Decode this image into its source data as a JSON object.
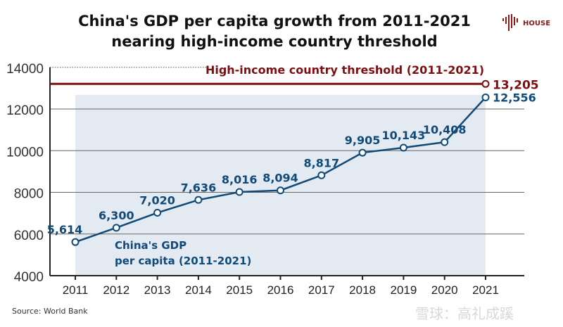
{
  "title_line1": "China's GDP per capita growth from 2011-2021",
  "title_line2": "nearing high-income country threshold",
  "logo_text": "HOUSE",
  "source": "Source: World Bank",
  "watermark": "雪球：高礼成蹊",
  "colors": {
    "series": "#114a78",
    "threshold": "#7d0f12",
    "shade": "#e3eaf2"
  },
  "chart_data": {
    "type": "line",
    "title": "China's GDP per capita growth from 2011-2021 nearing high-income country threshold",
    "x": [
      "2011",
      "2012",
      "2013",
      "2014",
      "2015",
      "2016",
      "2017",
      "2018",
      "2019",
      "2020",
      "2021"
    ],
    "series": [
      {
        "name": "China's GDP per capita (2011-2021)",
        "name_line1": "China's GDP",
        "name_line2": "per capita (2011-2021)",
        "values": [
          5614,
          6300,
          7020,
          7636,
          8016,
          8094,
          8817,
          9905,
          10143,
          10408,
          12556
        ],
        "labels": [
          "5,614",
          "6,300",
          "7,020",
          "7,636",
          "8,016",
          "8,094",
          "8,817",
          "9,905",
          "10,143",
          "10,408",
          "12,556"
        ]
      }
    ],
    "threshold": {
      "name": "High-income country threshold (2011-2021)",
      "value": 13205,
      "label": "13,205"
    },
    "yticks": [
      "4000",
      "6000",
      "8000",
      "10000",
      "12000",
      "14000"
    ],
    "ylim": [
      4000,
      14000
    ],
    "grid": true
  }
}
